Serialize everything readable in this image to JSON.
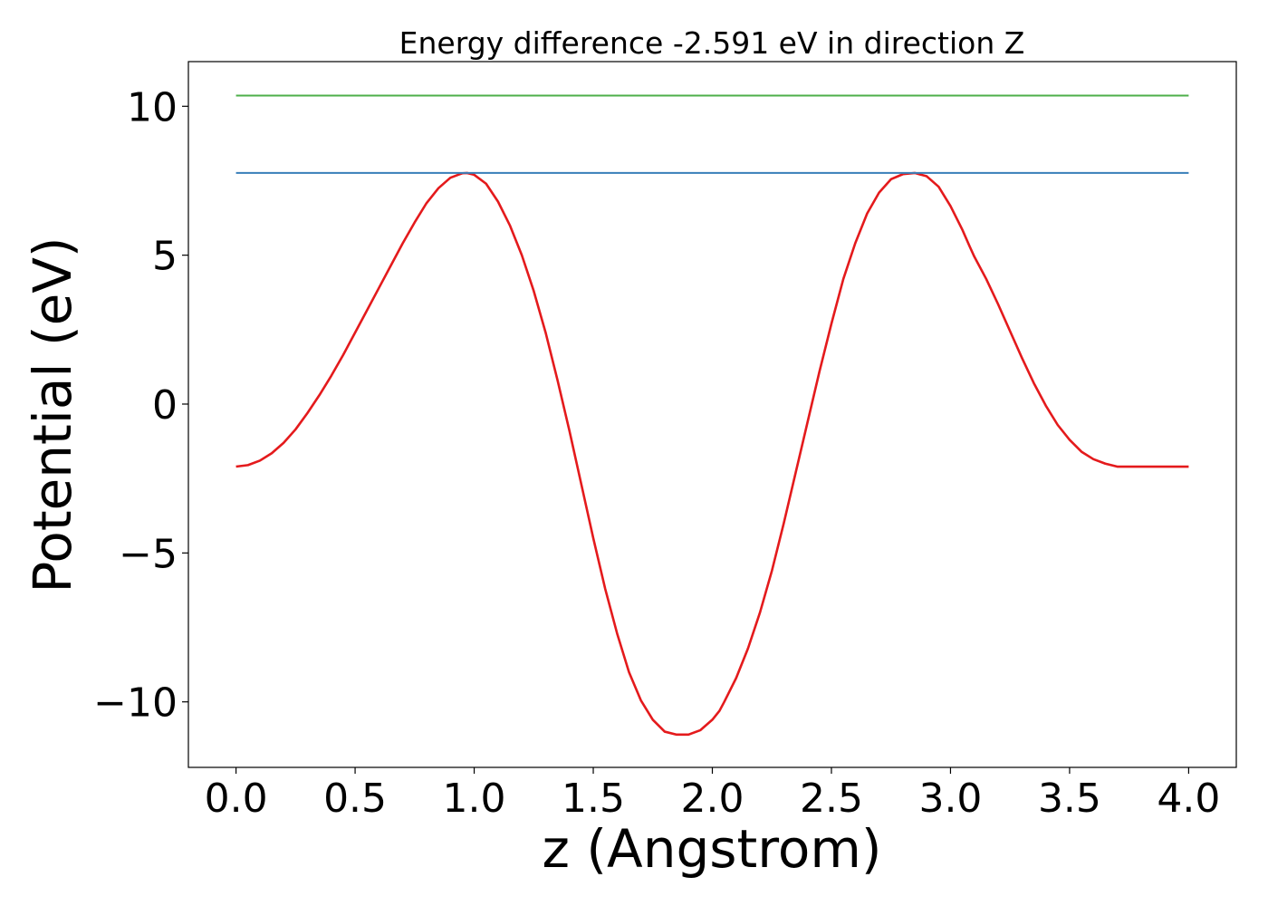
{
  "chart_data": {
    "type": "line",
    "title": "Energy difference -2.591 eV in direction Z",
    "xlabel": "z (Angstrom)",
    "ylabel": "Potential (eV)",
    "xlim": [
      -0.2,
      4.2
    ],
    "ylim": [
      -12.2,
      11.5
    ],
    "grid": false,
    "xticks": [
      0.0,
      0.5,
      1.0,
      1.5,
      2.0,
      2.5,
      3.0,
      3.5,
      4.0
    ],
    "xtick_labels": [
      "0.0",
      "0.5",
      "1.0",
      "1.5",
      "2.0",
      "2.5",
      "3.0",
      "3.5",
      "4.0"
    ],
    "yticks": [
      10,
      5,
      0,
      -5,
      -10
    ],
    "ytick_labels": [
      "10",
      "5",
      "0",
      "−5",
      "−10"
    ],
    "series": [
      {
        "color": "#e41a1c",
        "x": [
          0.0,
          0.05,
          0.1,
          0.15,
          0.2,
          0.25,
          0.3,
          0.35,
          0.4,
          0.45,
          0.5,
          0.55,
          0.6,
          0.65,
          0.7,
          0.75,
          0.8,
          0.85,
          0.9,
          0.95,
          0.97,
          1.0,
          1.05,
          1.1,
          1.15,
          1.2,
          1.25,
          1.3,
          1.35,
          1.4,
          1.45,
          1.5,
          1.55,
          1.6,
          1.65,
          1.7,
          1.75,
          1.8,
          1.85,
          1.9,
          1.95,
          2.0,
          2.03,
          2.05,
          2.1,
          2.15,
          2.2,
          2.25,
          2.3,
          2.35,
          2.4,
          2.45,
          2.5,
          2.55,
          2.6,
          2.65,
          2.7,
          2.75,
          2.8,
          2.85,
          2.9,
          2.95,
          3.0,
          3.05,
          3.08,
          3.1,
          3.15,
          3.2,
          3.25,
          3.3,
          3.35,
          3.4,
          3.45,
          3.5,
          3.55,
          3.6,
          3.65,
          3.7,
          3.75,
          3.8,
          3.85,
          3.9,
          3.95,
          4.0
        ],
        "y": [
          -2.1,
          -2.05,
          -1.9,
          -1.65,
          -1.3,
          -0.85,
          -0.3,
          0.3,
          0.95,
          1.65,
          2.4,
          3.15,
          3.9,
          4.65,
          5.4,
          6.1,
          6.75,
          7.25,
          7.6,
          7.75,
          7.76,
          7.7,
          7.4,
          6.8,
          6.0,
          5.0,
          3.8,
          2.4,
          0.8,
          -0.9,
          -2.7,
          -4.5,
          -6.2,
          -7.7,
          -9.0,
          -9.95,
          -10.6,
          -11.0,
          -11.1,
          -11.1,
          -10.95,
          -10.6,
          -10.3,
          -10.0,
          -9.2,
          -8.2,
          -7.0,
          -5.6,
          -4.0,
          -2.3,
          -0.6,
          1.1,
          2.7,
          4.2,
          5.4,
          6.4,
          7.1,
          7.55,
          7.72,
          7.76,
          7.65,
          7.3,
          6.65,
          5.85,
          5.3,
          4.95,
          4.2,
          3.35,
          2.45,
          1.55,
          0.7,
          -0.05,
          -0.7,
          -1.2,
          -1.6,
          -1.85,
          -2.0,
          -2.1,
          -2.1,
          -2.1,
          -2.1,
          -2.1,
          -2.1,
          -2.1
        ]
      },
      {
        "color": "#377eb8",
        "x": [
          0.0,
          4.0
        ],
        "y": [
          7.76,
          7.76
        ]
      },
      {
        "color": "#4daf4a",
        "x": [
          0.0,
          4.0
        ],
        "y": [
          10.36,
          10.36
        ]
      }
    ]
  }
}
